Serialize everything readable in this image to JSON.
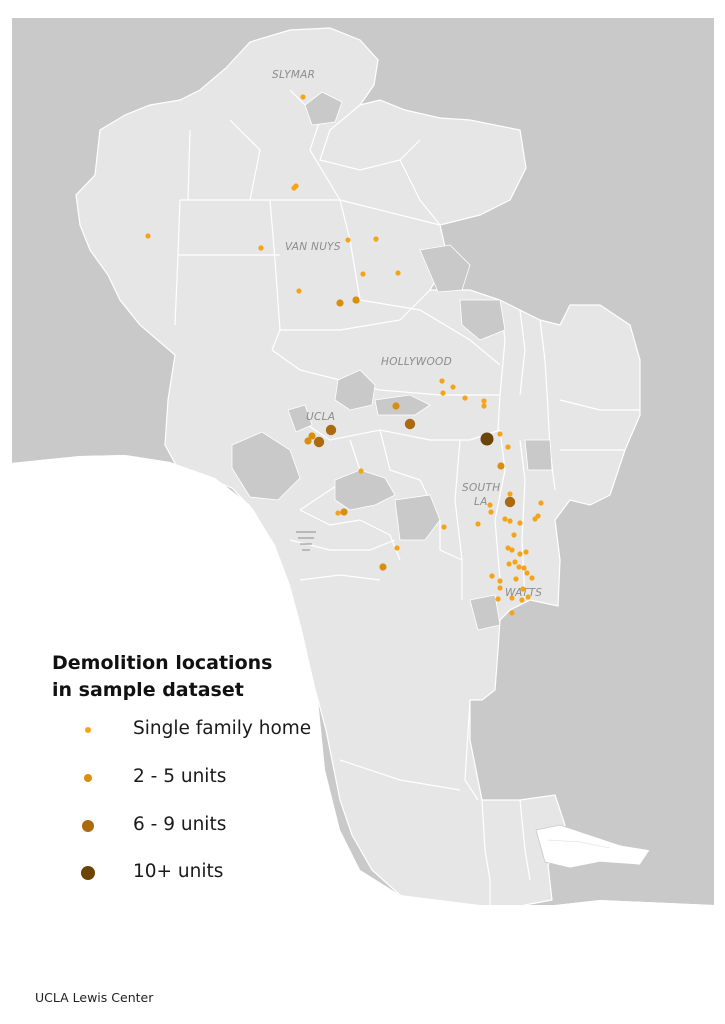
{
  "legend": {
    "title_line1": "Demolition locations",
    "title_line2": "in sample dataset",
    "items": [
      {
        "label": "Single family home",
        "color": "#F5A418",
        "size": "small"
      },
      {
        "label": "2 - 5 units",
        "color": "#D88E0E",
        "size": "medium"
      },
      {
        "label": "6 - 9 units",
        "color": "#A96A10",
        "size": "large"
      },
      {
        "label": "10+ units",
        "color": "#6B4408",
        "size": "xlarge"
      }
    ]
  },
  "place_labels": [
    "SLYMAR",
    "VAN NUYS",
    "HOLLYWOOD",
    "UCLA",
    "SOUTH",
    "LA",
    "WATTS"
  ],
  "credit": "UCLA Lewis Center",
  "colors": {
    "surrounding_land": "#c9c9c9",
    "city_fill": "#e6e6e6",
    "district_borders": "#ffffff",
    "ocean": "#ffffff"
  }
}
